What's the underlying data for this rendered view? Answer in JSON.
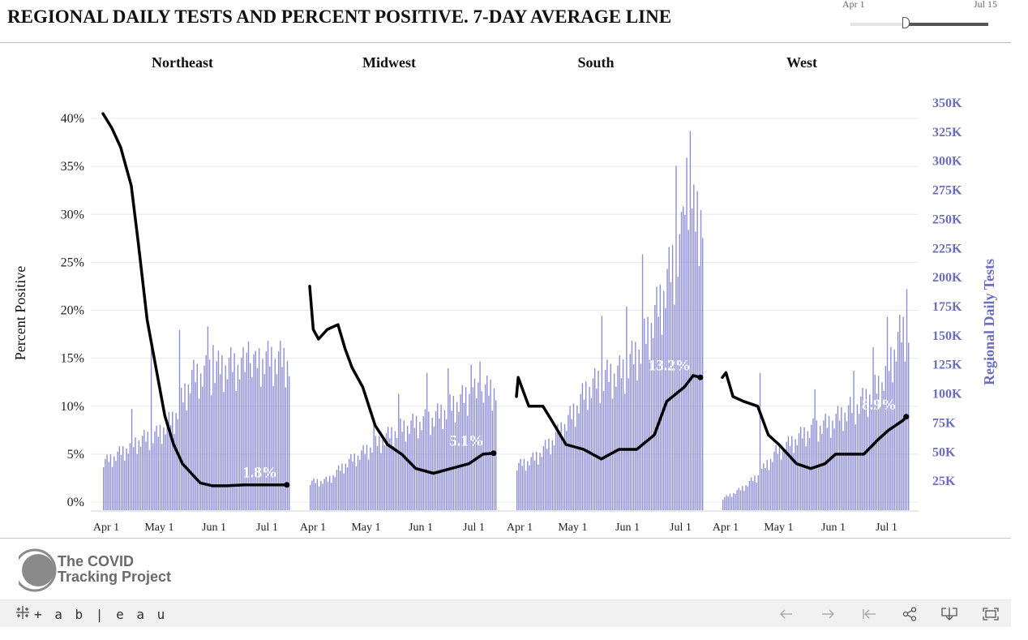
{
  "title": "REGIONAL DAILY TESTS AND PERCENT POSITIVE. 7-DAY AVERAGE LINE",
  "slider": {
    "start_label": "Apr 1",
    "end_label": "Jul 15",
    "value": 0.4
  },
  "footer": {
    "logo_line1": "The COVID",
    "logo_line2": "Tracking Project",
    "tableau_text": "+ a b | e a u"
  },
  "toolbar": {
    "icons": [
      "tableau-grid-icon",
      "undo-icon",
      "redo-icon",
      "revert-icon",
      "share-icon",
      "download-icon",
      "fullscreen-icon"
    ]
  },
  "colors": {
    "bar": "#8e8ed6",
    "line": "#000000",
    "right_axis": "#6c6cc0",
    "grid": "#e8e8e8"
  },
  "chart_data": {
    "type": "bar",
    "left_axis_label": "Percent Positive",
    "right_axis_label": "Regional Daily Tests",
    "left_ticks": [
      "0%",
      "5%",
      "10%",
      "15%",
      "20%",
      "25%",
      "30%",
      "35%",
      "40%"
    ],
    "right_ticks": [
      "25K",
      "50K",
      "75K",
      "100K",
      "125K",
      "150K",
      "175K",
      "200K",
      "225K",
      "250K",
      "275K",
      "300K",
      "325K",
      "350K"
    ],
    "x_ticks": [
      "Apr 1",
      "May 1",
      "Jun 1",
      "Jul 1"
    ],
    "left_ylim": [
      0,
      42
    ],
    "right_ylim": [
      0,
      350000
    ],
    "x_range": [
      "2020-04-01",
      "2020-07-15"
    ],
    "panels": [
      {
        "name": "Northeast",
        "end_label": "1.8%",
        "tests_keypoints": [
          [
            0,
            41000
          ],
          [
            8,
            48000
          ],
          [
            20,
            60000
          ],
          [
            30,
            65000
          ],
          [
            40,
            80000
          ],
          [
            50,
            115000
          ],
          [
            60,
            120000
          ],
          [
            70,
            125000
          ],
          [
            80,
            125000
          ],
          [
            90,
            130000
          ],
          [
            100,
            130000
          ],
          [
            105,
            128000
          ]
        ],
        "tests_spikes": [
          [
            16,
            87000
          ],
          [
            27,
            146000
          ],
          [
            43,
            155000
          ],
          [
            59,
            158000
          ],
          [
            62,
            142000
          ],
          [
            82,
            145000
          ],
          [
            86,
            137000
          ]
        ],
        "positivity": [
          [
            0,
            40.5
          ],
          [
            5,
            39
          ],
          [
            10,
            37
          ],
          [
            16,
            33
          ],
          [
            20,
            27
          ],
          [
            25,
            19
          ],
          [
            30,
            14
          ],
          [
            35,
            9
          ],
          [
            40,
            6
          ],
          [
            45,
            4
          ],
          [
            50,
            3
          ],
          [
            55,
            2
          ],
          [
            62,
            1.7
          ],
          [
            70,
            1.7
          ],
          [
            80,
            1.8
          ],
          [
            90,
            1.8
          ],
          [
            104,
            1.8
          ]
        ]
      },
      {
        "name": "Midwest",
        "end_label": "5.1%",
        "tests_keypoints": [
          [
            0,
            24000
          ],
          [
            10,
            26000
          ],
          [
            20,
            40000
          ],
          [
            30,
            50000
          ],
          [
            40,
            60000
          ],
          [
            50,
            70000
          ],
          [
            60,
            75000
          ],
          [
            70,
            80000
          ],
          [
            80,
            90000
          ],
          [
            90,
            100000
          ],
          [
            105,
            105000
          ]
        ],
        "tests_spikes": [
          [
            36,
            76000
          ],
          [
            50,
            100000
          ],
          [
            66,
            118000
          ],
          [
            78,
            122000
          ],
          [
            91,
            125000
          ],
          [
            96,
            128000
          ]
        ],
        "positivity": [
          [
            0,
            22.5
          ],
          [
            2,
            18
          ],
          [
            5,
            17
          ],
          [
            10,
            18
          ],
          [
            16,
            18.5
          ],
          [
            20,
            16
          ],
          [
            24,
            14
          ],
          [
            30,
            12
          ],
          [
            37,
            8
          ],
          [
            44,
            6
          ],
          [
            52,
            5
          ],
          [
            60,
            3.5
          ],
          [
            70,
            3
          ],
          [
            80,
            3.5
          ],
          [
            90,
            4
          ],
          [
            98,
            5
          ],
          [
            104,
            5.1
          ]
        ]
      },
      {
        "name": "South",
        "end_label": "13.2%",
        "tests_keypoints": [
          [
            0,
            38000
          ],
          [
            10,
            45000
          ],
          [
            20,
            60000
          ],
          [
            30,
            80000
          ],
          [
            40,
            105000
          ],
          [
            50,
            115000
          ],
          [
            60,
            120000
          ],
          [
            70,
            140000
          ],
          [
            80,
            175000
          ],
          [
            90,
            220000
          ],
          [
            100,
            250000
          ],
          [
            105,
            260000
          ]
        ],
        "tests_spikes": [
          [
            48,
            167000
          ],
          [
            62,
            175000
          ],
          [
            71,
            220000
          ],
          [
            90,
            296000
          ],
          [
            94,
            261000
          ],
          [
            96,
            303000
          ],
          [
            98,
            326000
          ]
        ],
        "positivity": [
          [
            0,
            11
          ],
          [
            1,
            13
          ],
          [
            3,
            12
          ],
          [
            7,
            10
          ],
          [
            15,
            10
          ],
          [
            20,
            8.5
          ],
          [
            28,
            6
          ],
          [
            38,
            5.5
          ],
          [
            48,
            4.5
          ],
          [
            58,
            5.5
          ],
          [
            68,
            5.5
          ],
          [
            78,
            7
          ],
          [
            85,
            10.5
          ],
          [
            95,
            12
          ],
          [
            100,
            13.2
          ],
          [
            104,
            13
          ]
        ]
      },
      {
        "name": "West",
        "end_label": "8.9%",
        "tests_keypoints": [
          [
            0,
            10000
          ],
          [
            10,
            18000
          ],
          [
            20,
            30000
          ],
          [
            30,
            50000
          ],
          [
            40,
            60000
          ],
          [
            50,
            70000
          ],
          [
            60,
            75000
          ],
          [
            70,
            85000
          ],
          [
            80,
            95000
          ],
          [
            90,
            110000
          ],
          [
            100,
            150000
          ],
          [
            105,
            160000
          ]
        ],
        "tests_spikes": [
          [
            21,
            118000
          ],
          [
            52,
            104000
          ],
          [
            74,
            120000
          ],
          [
            85,
            140000
          ],
          [
            93,
            166000
          ],
          [
            104,
            190000
          ]
        ],
        "positivity": [
          [
            0,
            13
          ],
          [
            2,
            13.5
          ],
          [
            6,
            11
          ],
          [
            12,
            10.5
          ],
          [
            20,
            10
          ],
          [
            26,
            7
          ],
          [
            32,
            6
          ],
          [
            42,
            4
          ],
          [
            50,
            3.5
          ],
          [
            58,
            4
          ],
          [
            64,
            5
          ],
          [
            72,
            5
          ],
          [
            80,
            5
          ],
          [
            88,
            6.5
          ],
          [
            94,
            7.5
          ],
          [
            102,
            8.5
          ],
          [
            104,
            8.9
          ]
        ]
      }
    ]
  }
}
